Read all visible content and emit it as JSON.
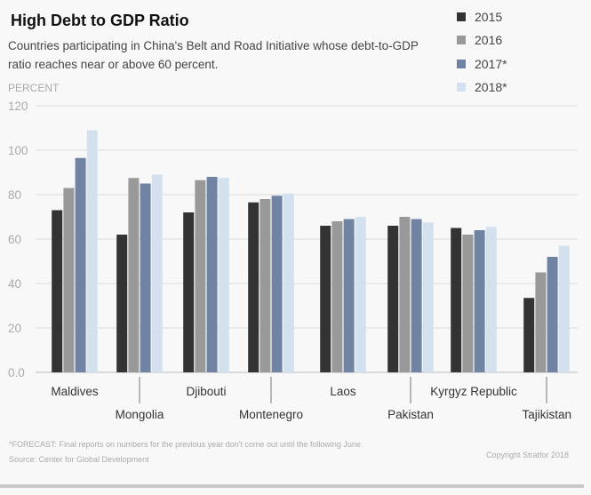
{
  "chart_data": {
    "type": "bar",
    "title": "High Debt to GDP Ratio",
    "subtitle_lines": [
      "Countries participating in China's Belt and Road Initiative whose debt-to-GDP",
      "ratio reaches near or above 60 percent."
    ],
    "ylabel": "PERCENT",
    "ylim": [
      0,
      120
    ],
    "yticks": [
      "0.0",
      "20",
      "40",
      "60",
      "80",
      "100",
      "120"
    ],
    "ytick_values": [
      0,
      20,
      40,
      60,
      80,
      100,
      120
    ],
    "grid": true,
    "legend_position": "top-right",
    "categories": [
      "Maldives",
      "Mongolia",
      "Djibouti",
      "Montenegro",
      "Laos",
      "Pakistan",
      "Kyrgyz Republic",
      "Tajikistan"
    ],
    "series": [
      {
        "name": "2015",
        "color": "#333333",
        "values": [
          73,
          62,
          72,
          76.5,
          66,
          66,
          65,
          33.5
        ]
      },
      {
        "name": "2016",
        "color": "#999999",
        "values": [
          83,
          87.5,
          86.5,
          78,
          68,
          70,
          62,
          45
        ]
      },
      {
        "name": "2017*",
        "color": "#7183a3",
        "values": [
          96.5,
          85,
          88,
          79.5,
          69,
          69,
          64,
          52
        ]
      },
      {
        "name": "2018*",
        "color": "#d3e1ee",
        "values": [
          109,
          89,
          87.5,
          80.5,
          70,
          67.5,
          65.5,
          57
        ]
      }
    ],
    "footnote": "*FORECAST: Final reports on numbers for the previous year don't come out until the following June.",
    "source": "Source: Center for Global Development",
    "copyright": "Copyright Stratfor 2018"
  }
}
